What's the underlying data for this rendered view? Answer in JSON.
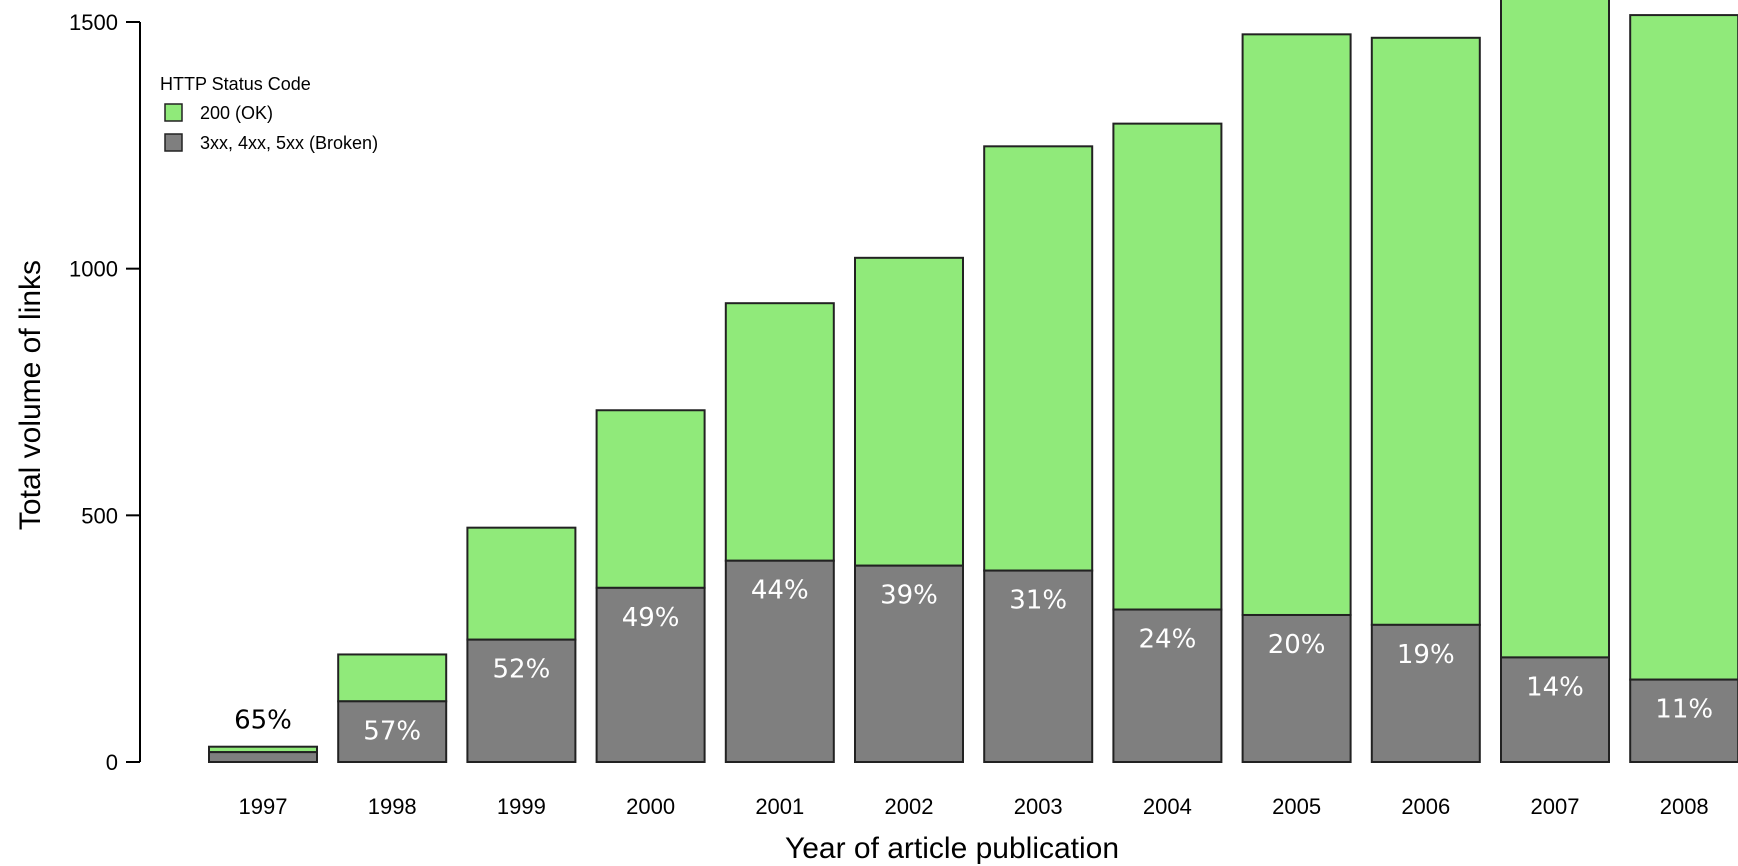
{
  "chart_data": {
    "type": "bar",
    "stacked": true,
    "title": "",
    "xlabel": "Year of article publication",
    "ylabel": "Total volume of links",
    "ylim": [
      0,
      1500
    ],
    "yticks": [
      0,
      500,
      1000,
      1500
    ],
    "grid": false,
    "categories": [
      "1997",
      "1998",
      "1999",
      "2000",
      "2001",
      "2002",
      "2003",
      "2004",
      "2005",
      "2006",
      "2007",
      "2008"
    ],
    "legend": {
      "title": "HTTP Status Code",
      "position": "top-left"
    },
    "series": [
      {
        "name": "3xx, 4xx, 5xx (Broken)",
        "color": "#7f7f7f",
        "values": [
          20,
          123,
          248,
          353,
          408,
          398,
          388,
          309,
          298,
          278,
          212,
          167
        ]
      },
      {
        "name": "200 (OK)",
        "color": "#90ea7a",
        "values": [
          11,
          95,
          227,
          360,
          522,
          624,
          860,
          985,
          1177,
          1190,
          1338,
          1347
        ]
      }
    ],
    "data_labels": [
      "65%",
      "57%",
      "52%",
      "49%",
      "44%",
      "39%",
      "31%",
      "24%",
      "20%",
      "19%",
      "14%",
      "11%"
    ]
  }
}
